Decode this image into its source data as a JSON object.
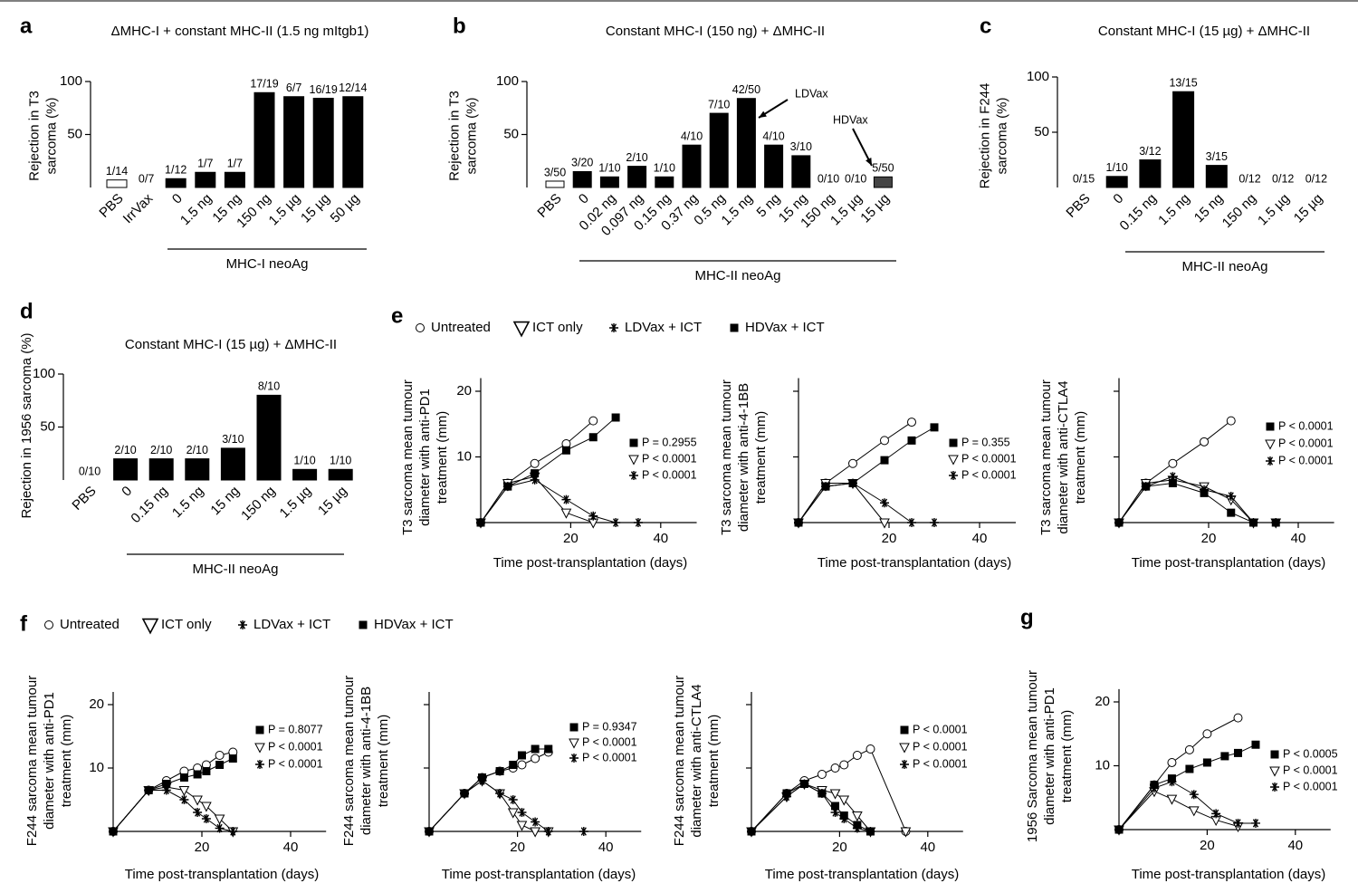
{
  "chart_data": [
    {
      "type": "bar",
      "panel": "a",
      "title": "ΔMHC-I + constant MHC-II (1.5 ng mItgb1)",
      "ylabel": [
        "Rejection in T3",
        "sarcoma (%)"
      ],
      "categories": [
        "PBS",
        "IrrVax",
        "0",
        "1.5 ng",
        "15 ng",
        "150 ng",
        "1.5 µg",
        "15 µg",
        "50 µg"
      ],
      "values": [
        7.1,
        0,
        8.3,
        14.3,
        14.3,
        89.5,
        85.7,
        84.2,
        85.7
      ],
      "value_labels": [
        "1/14",
        "0/7",
        "1/12",
        "1/7",
        "1/7",
        "17/19",
        "6/7",
        "16/19",
        "12/14"
      ],
      "colors": [
        "#ffffff",
        "#000000",
        "#000000",
        "#000000",
        "#000000",
        "#000000",
        "#000000",
        "#000000",
        "#000000"
      ],
      "ylim": [
        0,
        100
      ],
      "yticks": [
        50,
        100
      ],
      "group_label": "MHC-I neoAg"
    },
    {
      "type": "bar",
      "panel": "b",
      "title": "Constant MHC-I (150 ng) + ΔMHC-II",
      "ylabel": [
        "Rejection in T3",
        "sarcoma (%)"
      ],
      "categories": [
        "PBS",
        "0",
        "0.02 ng",
        "0.097 ng",
        "0.15 ng",
        "0.37 ng",
        "0.5 ng",
        "1.5 ng",
        "5 ng",
        "15 ng",
        "150 ng",
        "1.5 µg",
        "15 µg"
      ],
      "values": [
        6,
        15,
        10,
        20,
        10,
        40,
        70,
        84,
        40,
        30,
        0,
        0,
        10
      ],
      "value_labels": [
        "3/50",
        "3/20",
        "1/10",
        "2/10",
        "1/10",
        "4/10",
        "7/10",
        "42/50",
        "4/10",
        "3/10",
        "0/10",
        "0/10",
        "5/50"
      ],
      "colors": [
        "#ffffff",
        "#000000",
        "#000000",
        "#000000",
        "#000000",
        "#000000",
        "#000000",
        "#000000",
        "#000000",
        "#000000",
        "#000000",
        "#000000",
        "#444444"
      ],
      "ylim": [
        0,
        100
      ],
      "yticks": [
        50,
        100
      ],
      "group_label": "MHC-II neoAg",
      "annotations": [
        "LDVax",
        "HDVax"
      ]
    },
    {
      "type": "bar",
      "panel": "c",
      "title": "Constant MHC-I (15 µg) + ΔMHC-II",
      "ylabel": [
        "Rejection in F244",
        "sarcoma (%)"
      ],
      "categories": [
        "PBS",
        "0",
        "0.15 ng",
        "1.5 ng",
        "15 ng",
        "150 ng",
        "1.5 µg",
        "15 µg"
      ],
      "values": [
        0,
        10,
        25,
        86.7,
        20,
        0,
        0,
        0
      ],
      "value_labels": [
        "0/15",
        "1/10",
        "3/12",
        "13/15",
        "3/15",
        "0/12",
        "0/12",
        "0/12"
      ],
      "colors": [
        "#000000",
        "#000000",
        "#000000",
        "#000000",
        "#000000",
        "#000000",
        "#000000",
        "#000000"
      ],
      "ylim": [
        0,
        100
      ],
      "yticks": [
        50,
        100
      ],
      "group_label": "MHC-II neoAg"
    },
    {
      "type": "bar",
      "panel": "d",
      "title": "Constant MHC-I (15 µg) + ΔMHC-II",
      "ylabel": [
        "Rejection in 1956 sarcoma (%)"
      ],
      "categories": [
        "PBS",
        "0",
        "0.15 ng",
        "1.5 ng",
        "15 ng",
        "150 ng",
        "1.5 µg",
        "15 µg"
      ],
      "values": [
        0,
        20,
        20,
        20,
        30,
        80,
        10,
        10
      ],
      "value_labels": [
        "0/10",
        "2/10",
        "2/10",
        "2/10",
        "3/10",
        "8/10",
        "1/10",
        "1/10"
      ],
      "colors": [
        "#000000",
        "#000000",
        "#000000",
        "#000000",
        "#000000",
        "#000000",
        "#000000",
        "#000000"
      ],
      "ylim": [
        0,
        100
      ],
      "yticks": [
        50,
        100
      ],
      "group_label": "MHC-II neoAg"
    },
    {
      "type": "line",
      "panel": "e",
      "ylabel": [
        "T3 sarcoma mean tumour",
        "diameter with anti-PD1",
        "treatment (mm)"
      ],
      "xlabel": "Time post-transplantation (days)",
      "xlim": [
        0,
        48
      ],
      "ylim": [
        0,
        22
      ],
      "xticks": [
        20,
        40
      ],
      "yticks": [
        10,
        20
      ],
      "ytick_labels": true,
      "series": [
        {
          "name": "Untreated",
          "marker": "circle",
          "x": [
            0,
            6,
            12,
            19,
            25
          ],
          "values": [
            0,
            6,
            9,
            12,
            15.5
          ]
        },
        {
          "name": "ICT only",
          "marker": "triangle",
          "x": [
            0,
            6,
            12,
            19,
            25
          ],
          "values": [
            0,
            6,
            7,
            1.5,
            0
          ]
        },
        {
          "name": "LDVax + ICT",
          "marker": "asterisk",
          "x": [
            0,
            6,
            12,
            19,
            25,
            30,
            35
          ],
          "values": [
            0,
            5.5,
            6.5,
            3.5,
            1,
            0,
            0
          ]
        },
        {
          "name": "HDVax + ICT",
          "marker": "square",
          "x": [
            0,
            6,
            12,
            19,
            25,
            30
          ],
          "values": [
            0,
            5.5,
            7.5,
            11,
            13,
            16
          ]
        }
      ],
      "annotations": [
        {
          "marker": "square",
          "text": "P = 0.2955"
        },
        {
          "marker": "triangle",
          "text": "P < 0.0001"
        },
        {
          "marker": "asterisk",
          "text": "P < 0.0001"
        }
      ]
    },
    {
      "type": "line",
      "ylabel": [
        "T3 sarcoma mean tumour",
        "diameter with anti-4-1BB",
        "treatment (mm)"
      ],
      "xlabel": "Time post-transplantation (days)",
      "xlim": [
        0,
        48
      ],
      "ylim": [
        0,
        22
      ],
      "xticks": [
        20,
        40
      ],
      "yticks": [
        10,
        20
      ],
      "ytick_labels": false,
      "series": [
        {
          "marker": "circle",
          "x": [
            0,
            6,
            12,
            19,
            25
          ],
          "values": [
            0,
            6,
            9,
            12.5,
            15.3
          ]
        },
        {
          "marker": "triangle",
          "x": [
            0,
            6,
            12,
            19
          ],
          "values": [
            0,
            6,
            6,
            0
          ]
        },
        {
          "marker": "asterisk",
          "x": [
            0,
            6,
            12,
            19,
            25,
            30
          ],
          "values": [
            0,
            5.5,
            6,
            3,
            0,
            0
          ]
        },
        {
          "marker": "square",
          "x": [
            0,
            6,
            12,
            19,
            25,
            30
          ],
          "values": [
            0,
            5.5,
            6,
            9.5,
            12.5,
            14.5
          ]
        }
      ],
      "annotations": [
        {
          "marker": "square",
          "text": "P = 0.355"
        },
        {
          "marker": "triangle",
          "text": "P < 0.0001"
        },
        {
          "marker": "asterisk",
          "text": "P < 0.0001"
        }
      ]
    },
    {
      "type": "line",
      "ylabel": [
        "T3 sarcoma mean tumour",
        "diameter with anti-CTLA4",
        "treatment (mm)"
      ],
      "xlabel": "Time post-transplantation (days)",
      "xlim": [
        0,
        48
      ],
      "ylim": [
        0,
        22
      ],
      "xticks": [
        20,
        40
      ],
      "yticks": [
        10,
        20
      ],
      "ytick_labels": false,
      "series": [
        {
          "marker": "circle",
          "x": [
            0,
            6,
            12,
            19,
            25
          ],
          "values": [
            0,
            6,
            9,
            12.3,
            15.5
          ]
        },
        {
          "marker": "triangle",
          "x": [
            0,
            6,
            12,
            19,
            25,
            30,
            35
          ],
          "values": [
            0,
            6,
            6.5,
            5.5,
            3.5,
            0,
            0
          ]
        },
        {
          "marker": "asterisk",
          "x": [
            0,
            6,
            12,
            19,
            25,
            30,
            35
          ],
          "values": [
            0,
            5.5,
            7,
            5,
            4,
            0,
            0
          ]
        },
        {
          "marker": "square",
          "x": [
            0,
            6,
            12,
            19,
            25,
            30,
            35
          ],
          "values": [
            0,
            5.5,
            6,
            4.5,
            1.5,
            0,
            0
          ]
        }
      ],
      "annotations": [
        {
          "marker": "square",
          "text": "P < 0.0001"
        },
        {
          "marker": "triangle",
          "text": "P < 0.0001"
        },
        {
          "marker": "asterisk",
          "text": "P < 0.0001"
        }
      ]
    },
    {
      "type": "line",
      "panel": "f",
      "ylabel": [
        "F244 sarcoma mean tumour",
        "diameter with anti-PD1",
        "treatment (mm)"
      ],
      "xlabel": "Time post-transplantation (days)",
      "xlim": [
        0,
        48
      ],
      "ylim": [
        0,
        22
      ],
      "xticks": [
        20,
        40
      ],
      "yticks": [
        10,
        20
      ],
      "ytick_labels": true,
      "series": [
        {
          "name": "Untreated",
          "marker": "circle",
          "x": [
            0,
            8,
            12,
            16,
            19,
            21,
            24,
            27
          ],
          "values": [
            0,
            6.5,
            8,
            9.5,
            10,
            10.5,
            12,
            12.5
          ]
        },
        {
          "name": "ICT only",
          "marker": "triangle",
          "x": [
            0,
            8,
            12,
            16,
            19,
            21,
            24,
            27
          ],
          "values": [
            0,
            6.5,
            7,
            6.5,
            5,
            4,
            2,
            0
          ]
        },
        {
          "name": "LDVax + ICT",
          "marker": "asterisk",
          "x": [
            0,
            8,
            12,
            16,
            19,
            21,
            24,
            27
          ],
          "values": [
            0,
            6.5,
            6.5,
            5,
            3,
            2,
            0.5,
            0
          ]
        },
        {
          "name": "HDVax + ICT",
          "marker": "square",
          "x": [
            0,
            8,
            12,
            16,
            19,
            21,
            24,
            27
          ],
          "values": [
            0,
            6.5,
            7.5,
            8.5,
            9,
            9.5,
            10.5,
            11.5
          ]
        }
      ],
      "annotations": [
        {
          "marker": "square",
          "text": "P = 0.8077"
        },
        {
          "marker": "triangle",
          "text": "P < 0.0001"
        },
        {
          "marker": "asterisk",
          "text": "P < 0.0001"
        }
      ]
    },
    {
      "type": "line",
      "ylabel": [
        "F244 sarcoma mean tumour",
        "diameter with anti-4-1BB",
        "treatment (mm)"
      ],
      "xlabel": "Time post-transplantation (days)",
      "xlim": [
        0,
        48
      ],
      "ylim": [
        0,
        22
      ],
      "xticks": [
        20,
        40
      ],
      "yticks": [
        10,
        20
      ],
      "ytick_labels": false,
      "series": [
        {
          "marker": "circle",
          "x": [
            0,
            8,
            12,
            16,
            19,
            21,
            24,
            27
          ],
          "values": [
            0,
            6,
            8.5,
            9.5,
            10,
            10.5,
            11.5,
            12.5
          ]
        },
        {
          "marker": "triangle",
          "x": [
            0,
            8,
            12,
            16,
            19,
            21,
            24,
            27
          ],
          "values": [
            0,
            6,
            8,
            6,
            3,
            1,
            0,
            0
          ]
        },
        {
          "marker": "asterisk",
          "x": [
            0,
            8,
            12,
            16,
            19,
            21,
            24,
            27,
            35
          ],
          "values": [
            0,
            6,
            8,
            6,
            5,
            3,
            1.5,
            0,
            0
          ]
        },
        {
          "marker": "square",
          "x": [
            0,
            8,
            12,
            16,
            19,
            21,
            24,
            27
          ],
          "values": [
            0,
            6,
            8.5,
            9.5,
            10.5,
            12,
            13,
            13
          ]
        }
      ],
      "annotations": [
        {
          "marker": "square",
          "text": "P = 0.9347"
        },
        {
          "marker": "triangle",
          "text": "P < 0.0001"
        },
        {
          "marker": "asterisk",
          "text": "P < 0.0001"
        }
      ]
    },
    {
      "type": "line",
      "ylabel": [
        "F244 sarcoma mean tumour",
        "diameter with anti-CTLA4",
        "treatment (mm)"
      ],
      "xlabel": "Time post-transplantation (days)",
      "xlim": [
        0,
        48
      ],
      "ylim": [
        0,
        22
      ],
      "xticks": [
        20,
        40
      ],
      "yticks": [
        10,
        20
      ],
      "ytick_labels": false,
      "series": [
        {
          "marker": "circle",
          "x": [
            0,
            8,
            12,
            16,
            19,
            21,
            24,
            27,
            35
          ],
          "values": [
            0,
            6,
            8,
            9,
            10,
            10.5,
            12,
            13,
            0
          ]
        },
        {
          "marker": "triangle",
          "x": [
            0,
            8,
            12,
            16,
            19,
            21,
            24,
            27,
            35
          ],
          "values": [
            0,
            5.5,
            7.5,
            6.5,
            6,
            5,
            2.5,
            0,
            0
          ]
        },
        {
          "marker": "asterisk",
          "x": [
            0,
            8,
            12,
            16,
            19,
            21,
            24,
            27
          ],
          "values": [
            0,
            5.5,
            7.5,
            6,
            3,
            2,
            0.5,
            0
          ]
        },
        {
          "marker": "square",
          "x": [
            0,
            8,
            12,
            16,
            19,
            21,
            24,
            27
          ],
          "values": [
            0,
            6,
            7.5,
            6,
            4,
            2.5,
            1,
            0
          ]
        }
      ],
      "annotations": [
        {
          "marker": "square",
          "text": "P < 0.0001"
        },
        {
          "marker": "triangle",
          "text": "P < 0.0001"
        },
        {
          "marker": "asterisk",
          "text": "P < 0.0001"
        }
      ]
    },
    {
      "type": "line",
      "panel": "g",
      "ylabel": [
        "1956 Sarcoma mean tumour",
        "diameter with anti-PD1",
        "treatment (mm)"
      ],
      "xlabel": "Time post-transplantation (days)",
      "xlim": [
        0,
        48
      ],
      "ylim": [
        0,
        22
      ],
      "xticks": [
        20,
        40
      ],
      "yticks": [
        10,
        20
      ],
      "ytick_labels": true,
      "series": [
        {
          "marker": "circle",
          "x": [
            0,
            8,
            12,
            16,
            20,
            27
          ],
          "values": [
            0,
            7,
            10.5,
            12.5,
            15,
            17.5
          ]
        },
        {
          "marker": "triangle",
          "x": [
            0,
            8,
            12,
            17,
            22,
            27
          ],
          "values": [
            0,
            6,
            4.8,
            3,
            1.5,
            0.5
          ]
        },
        {
          "marker": "asterisk",
          "x": [
            0,
            8,
            12,
            17,
            22,
            27,
            31
          ],
          "values": [
            0,
            6.5,
            7.5,
            5.5,
            2.5,
            1,
            1
          ]
        },
        {
          "marker": "square",
          "x": [
            0,
            8,
            12,
            16,
            20,
            24,
            27,
            31
          ],
          "values": [
            0,
            7,
            8,
            9.5,
            10.5,
            11.5,
            12,
            13.3
          ]
        }
      ],
      "annotations": [
        {
          "marker": "square",
          "text": "P < 0.0005"
        },
        {
          "marker": "triangle",
          "text": "P < 0.0001"
        },
        {
          "marker": "asterisk",
          "text": "P < 0.0001"
        }
      ]
    }
  ]
}
